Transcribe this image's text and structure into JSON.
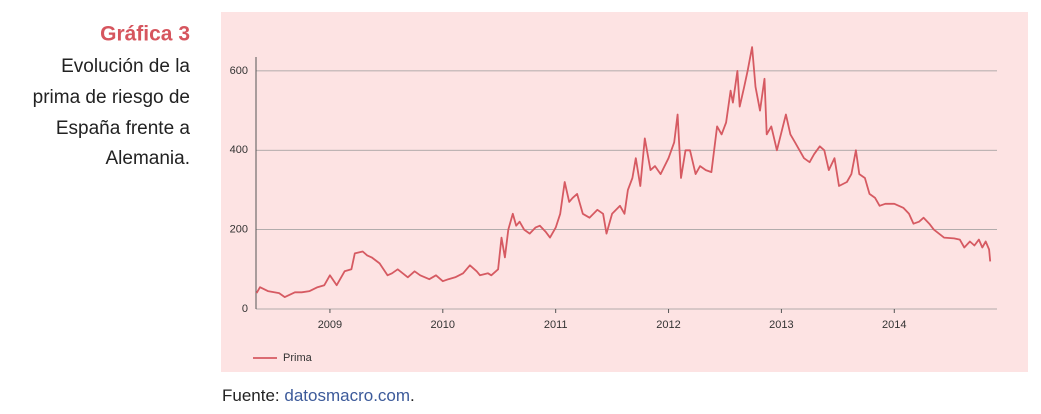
{
  "header": {
    "label": "Gráfica 3",
    "description": [
      "Evolución de la",
      "prima de riesgo de",
      "España frente a",
      "Alemania."
    ]
  },
  "chart_data": {
    "type": "line",
    "x": [
      2008.35,
      2008.38,
      2008.45,
      2008.55,
      2008.6,
      2008.69,
      2008.75,
      2008.82,
      2008.89,
      2008.95,
      2009.0,
      2009.06,
      2009.13,
      2009.19,
      2009.22,
      2009.29,
      2009.33,
      2009.37,
      2009.44,
      2009.51,
      2009.55,
      2009.6,
      2009.69,
      2009.75,
      2009.8,
      2009.88,
      2009.94,
      2010.0,
      2010.05,
      2010.11,
      2010.18,
      2010.24,
      2010.3,
      2010.33,
      2010.4,
      2010.43,
      2010.49,
      2010.52,
      2010.55,
      2010.58,
      2010.62,
      2010.65,
      2010.68,
      2010.72,
      2010.77,
      2010.82,
      2010.86,
      2010.91,
      2010.95,
      2011.0,
      2011.04,
      2011.08,
      2011.12,
      2011.15,
      2011.19,
      2011.24,
      2011.3,
      2011.37,
      2011.42,
      2011.45,
      2011.5,
      2011.57,
      2011.61,
      2011.64,
      2011.68,
      2011.71,
      2011.75,
      2011.79,
      2011.84,
      2011.88,
      2011.93,
      2012.0,
      2012.05,
      2012.08,
      2012.11,
      2012.15,
      2012.19,
      2012.24,
      2012.28,
      2012.33,
      2012.38,
      2012.43,
      2012.47,
      2012.51,
      2012.55,
      2012.57,
      2012.61,
      2012.63,
      2012.67,
      2012.7,
      2012.74,
      2012.77,
      2012.81,
      2012.85,
      2012.87,
      2012.91,
      2012.96,
      2013.04,
      2013.08,
      2013.12,
      2013.2,
      2013.25,
      2013.29,
      2013.34,
      2013.38,
      2013.42,
      2013.47,
      2013.51,
      2013.58,
      2013.62,
      2013.66,
      2013.69,
      2013.74,
      2013.78,
      2013.83,
      2013.87,
      2013.92,
      2014.0,
      2014.08,
      2014.13,
      2014.17,
      2014.22,
      2014.26,
      2014.31,
      2014.35,
      2014.44,
      2014.53,
      2014.58,
      2014.62,
      2014.67,
      2014.71,
      2014.75,
      2014.78,
      2014.81,
      2014.84,
      2014.85
    ],
    "series": [
      {
        "name": "Prima",
        "color": "#d65a62",
        "values": [
          40,
          55,
          45,
          40,
          30,
          42,
          42,
          45,
          55,
          60,
          85,
          60,
          95,
          100,
          140,
          145,
          135,
          130,
          115,
          85,
          90,
          100,
          80,
          95,
          85,
          75,
          85,
          70,
          75,
          80,
          90,
          110,
          95,
          85,
          90,
          85,
          100,
          180,
          130,
          200,
          240,
          210,
          220,
          200,
          190,
          205,
          210,
          195,
          180,
          205,
          240,
          320,
          270,
          280,
          290,
          240,
          230,
          250,
          240,
          190,
          240,
          260,
          240,
          300,
          330,
          380,
          310,
          430,
          350,
          360,
          340,
          380,
          420,
          490,
          330,
          400,
          400,
          340,
          360,
          350,
          345,
          460,
          440,
          470,
          550,
          520,
          600,
          510,
          560,
          600,
          660,
          560,
          500,
          580,
          440,
          460,
          400,
          490,
          440,
          420,
          380,
          370,
          390,
          410,
          400,
          350,
          380,
          310,
          320,
          340,
          400,
          340,
          330,
          290,
          280,
          260,
          265,
          265,
          255,
          240,
          215,
          220,
          230,
          215,
          200,
          180,
          178,
          175,
          155,
          170,
          160,
          175,
          155,
          170,
          150,
          120
        ]
      }
    ],
    "xlim": [
      2008.345,
      2014.91
    ],
    "xticks": [
      2009,
      2010,
      2011,
      2012,
      2013,
      2014
    ],
    "ylim": [
      0,
      635
    ],
    "yticks": [
      0,
      200,
      400,
      600
    ],
    "grid": true,
    "legend": "bottom-left"
  },
  "source": {
    "prefix": "Fuente: ",
    "link": "datosmacro.com",
    "suffix": "."
  }
}
